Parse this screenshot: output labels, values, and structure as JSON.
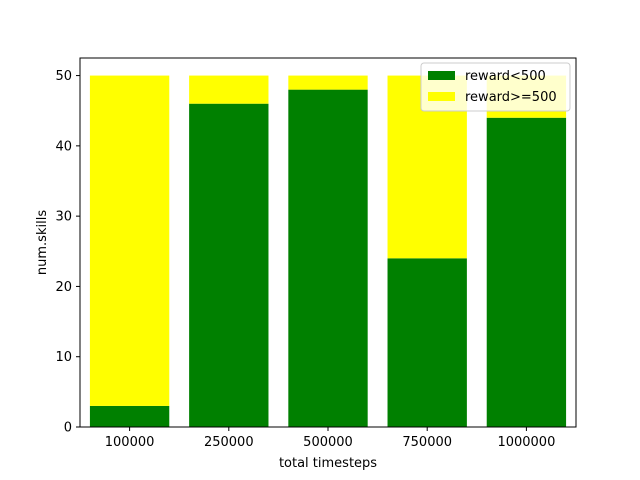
{
  "chart_data": {
    "type": "bar",
    "stacked": true,
    "categories": [
      "100000",
      "250000",
      "500000",
      "750000",
      "1000000"
    ],
    "series": [
      {
        "name": "reward<500",
        "values": [
          3,
          46,
          48,
          24,
          44
        ],
        "color": "#008000"
      },
      {
        "name": "reward>=500",
        "values": [
          47,
          4,
          2,
          26,
          6
        ],
        "color": "#ffff00"
      }
    ],
    "title": "",
    "xlabel": "total timesteps",
    "ylabel": "num.skills",
    "ylim": [
      0,
      52.5
    ],
    "yticks": [
      0,
      10,
      20,
      30,
      40,
      50
    ],
    "grid": false,
    "legend_position": "top-right"
  }
}
